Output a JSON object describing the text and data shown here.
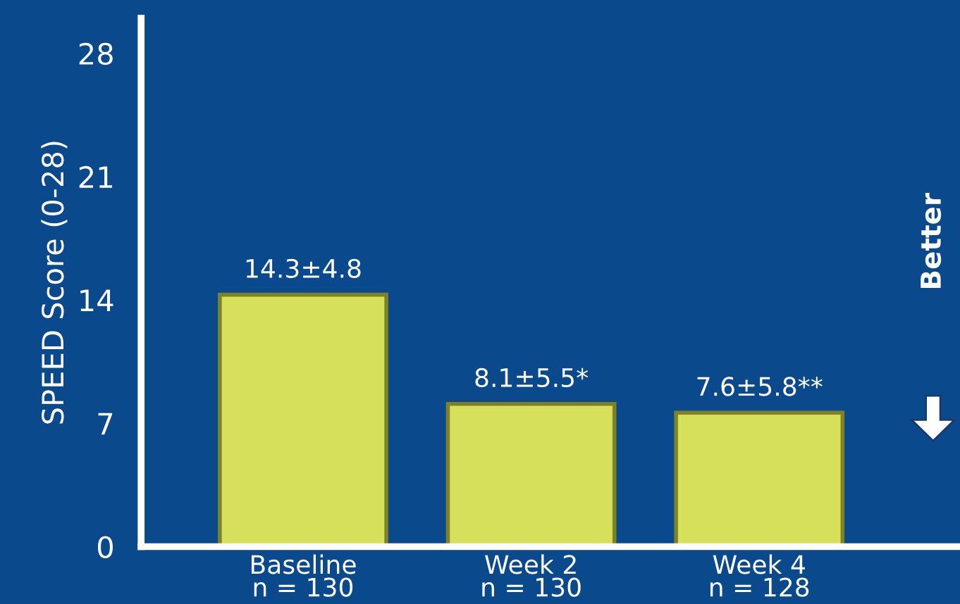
{
  "chart_data": {
    "type": "bar",
    "categories": [
      "Baseline\nn = 130",
      "Week 2\nn = 130",
      "Week 4\nn = 128"
    ],
    "values": [
      14.3,
      8.1,
      7.6
    ],
    "value_labels": [
      "14.3±4.8",
      "8.1±5.5*",
      "7.6±5.8**"
    ],
    "color": "#d6e05a",
    "ylabel": "SPEED Score (0-28)",
    "ylim": [
      0,
      30
    ],
    "yticks": [
      0,
      7,
      14,
      21,
      28
    ],
    "grid": false,
    "annotations": [
      "Better"
    ]
  }
}
